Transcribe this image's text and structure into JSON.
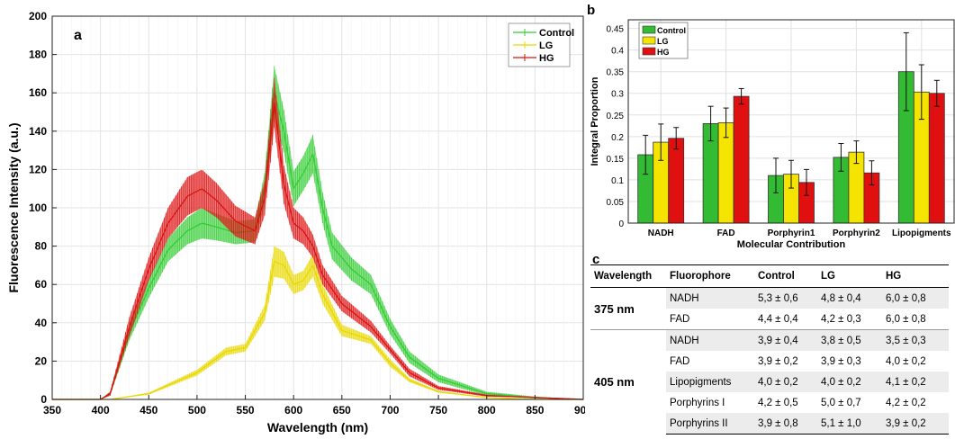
{
  "chart_data": [
    {
      "panel": "a",
      "type": "line",
      "xlabel": "Wavelength (nm)",
      "ylabel": "Fluorescence Intensity (a.u.)",
      "xlim": [
        350,
        900
      ],
      "ylim": [
        0,
        200
      ],
      "xticks": [
        350,
        400,
        450,
        500,
        550,
        600,
        650,
        700,
        750,
        800,
        850,
        900
      ],
      "yticks": [
        0,
        20,
        40,
        60,
        80,
        100,
        120,
        140,
        160,
        180,
        200
      ],
      "grid": true,
      "legend_position": "top-right",
      "error_bars": true,
      "series": [
        {
          "name": "Control",
          "color": "#33cc33",
          "x": [
            350,
            400,
            410,
            430,
            450,
            470,
            490,
            505,
            520,
            540,
            560,
            570,
            580,
            590,
            600,
            610,
            620,
            630,
            640,
            660,
            680,
            700,
            720,
            750,
            800,
            850,
            900
          ],
          "y": [
            0,
            0,
            3,
            35,
            58,
            78,
            88,
            92,
            90,
            87,
            88,
            110,
            160,
            140,
            110,
            118,
            128,
            100,
            80,
            68,
            60,
            38,
            22,
            11,
            3,
            1,
            0
          ],
          "err": [
            0,
            0,
            1,
            4,
            5,
            6,
            7,
            8,
            7,
            6,
            6,
            8,
            14,
            11,
            9,
            9,
            10,
            8,
            7,
            6,
            5,
            4,
            3,
            2,
            1,
            0.5,
            0
          ]
        },
        {
          "name": "LG",
          "color": "#e8d800",
          "x": [
            350,
            400,
            410,
            450,
            500,
            530,
            550,
            570,
            580,
            590,
            600,
            610,
            620,
            630,
            650,
            680,
            700,
            720,
            750,
            800,
            850,
            900
          ],
          "y": [
            0,
            0,
            0,
            3,
            14,
            25,
            27,
            45,
            72,
            70,
            60,
            62,
            70,
            55,
            36,
            31,
            19,
            10,
            4,
            1,
            0,
            0
          ],
          "err": [
            0,
            0,
            0,
            0.5,
            1.5,
            2,
            2,
            4,
            8,
            7,
            5,
            5,
            6,
            5,
            3,
            2,
            2,
            1,
            0.5,
            0,
            0,
            0
          ]
        },
        {
          "name": "HG",
          "color": "#dd1111",
          "x": [
            350,
            400,
            410,
            430,
            450,
            470,
            490,
            505,
            520,
            540,
            560,
            570,
            580,
            590,
            600,
            610,
            620,
            630,
            650,
            680,
            700,
            720,
            750,
            800,
            850,
            900
          ],
          "y": [
            0,
            0,
            3,
            38,
            68,
            92,
            106,
            110,
            104,
            93,
            88,
            105,
            155,
            112,
            92,
            88,
            80,
            65,
            50,
            38,
            26,
            14,
            6,
            2,
            1,
            0
          ],
          "err": [
            0,
            0,
            1,
            5,
            6,
            8,
            10,
            10,
            9,
            8,
            7,
            9,
            13,
            10,
            8,
            7,
            6,
            5,
            4,
            3,
            2,
            2,
            1,
            0.5,
            0,
            0
          ]
        }
      ]
    },
    {
      "panel": "b",
      "type": "bar",
      "xlabel": "Molecular Contribution",
      "ylabel": "Integral Proportion",
      "ylim": [
        0,
        0.47
      ],
      "yticks": [
        0,
        0.05,
        0.1,
        0.15,
        0.2,
        0.25,
        0.3,
        0.35,
        0.4,
        0.45
      ],
      "ytick_labels": [
        "0",
        "0.05",
        "0.1",
        "0.15",
        "0.2",
        "0.25",
        "0.3",
        "0.35",
        "0.4",
        "0.45"
      ],
      "grid": true,
      "legend_position": "top-left",
      "categories": [
        "NADH",
        "FAD",
        "Porphyrin1",
        "Porphyrin2",
        "Lipopigments"
      ],
      "series": [
        {
          "name": "Control",
          "color": "#33bb33",
          "values": [
            0.158,
            0.23,
            0.11,
            0.152,
            0.35
          ],
          "err": [
            0.045,
            0.04,
            0.04,
            0.032,
            0.09
          ]
        },
        {
          "name": "LG",
          "color": "#f5e400",
          "values": [
            0.187,
            0.232,
            0.113,
            0.164,
            0.303
          ],
          "err": [
            0.042,
            0.034,
            0.032,
            0.026,
            0.063
          ]
        },
        {
          "name": "HG",
          "color": "#e01010",
          "values": [
            0.196,
            0.293,
            0.094,
            0.116,
            0.3
          ],
          "err": [
            0.025,
            0.018,
            0.03,
            0.028,
            0.03
          ]
        }
      ]
    },
    {
      "panel": "c",
      "type": "table",
      "headers": [
        "Wavelength",
        "Fluorophore",
        "Control",
        "LG",
        "HG"
      ],
      "groups": [
        {
          "wavelength": "375 nm",
          "rows": [
            {
              "fluorophore": "NADH",
              "control": "5,3 ± 0,6",
              "lg": "4,8 ± 0,4",
              "hg": "6,0 ± 0,8"
            },
            {
              "fluorophore": "FAD",
              "control": "4,4 ± 0,4",
              "lg": "4,2 ± 0,3",
              "hg": "6,0 ± 0,8"
            }
          ]
        },
        {
          "wavelength": "405 nm",
          "rows": [
            {
              "fluorophore": "NADH",
              "control": "3,9 ± 0,4",
              "lg": "3,8 ± 0,5",
              "hg": "3,5 ± 0,3"
            },
            {
              "fluorophore": "FAD",
              "control": "3,9 ± 0,2",
              "lg": "3,9 ± 0,3",
              "hg": "4,0 ± 0,2"
            },
            {
              "fluorophore": "Lipopigments",
              "control": "4,0 ± 0,2",
              "lg": "4,0 ± 0,2",
              "hg": "4,1 ± 0,2"
            },
            {
              "fluorophore": "Porphyrins I",
              "control": "4,2 ± 0,5",
              "lg": "5,0 ± 0,7",
              "hg": "4,2 ± 0,2"
            },
            {
              "fluorophore": "Porphyrins II",
              "control": "3,9 ± 0,8",
              "lg": "5,1 ± 1,0",
              "hg": "3,9 ± 0,2"
            }
          ]
        }
      ]
    }
  ],
  "panel_labels": {
    "a": "a",
    "b": "b",
    "c": "c"
  }
}
